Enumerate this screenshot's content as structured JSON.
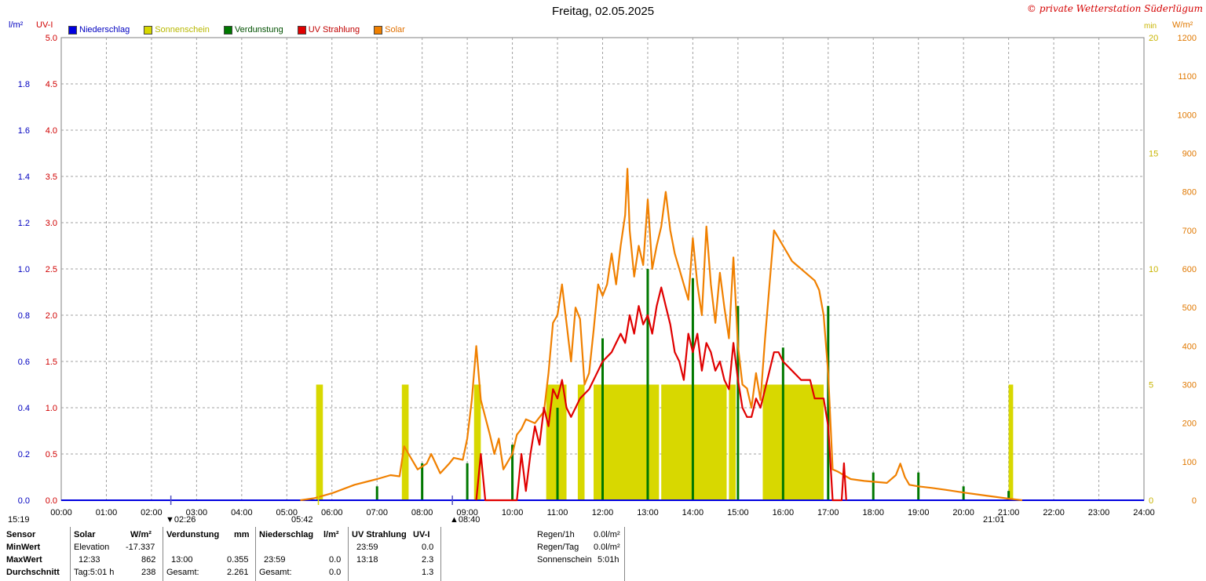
{
  "header": {
    "title": "Freitag, 02.05.2025",
    "copyright": "© private Wetterstation Süderlügum"
  },
  "axes": {
    "left1_unit": "l/m²",
    "left2_unit": "UV-I",
    "right1_unit": "min",
    "right2_unit": "W/m²"
  },
  "legend": [
    {
      "label": "Niederschlag",
      "color": "#0000e0"
    },
    {
      "label": "Sonnenschein",
      "color": "#d8d800"
    },
    {
      "label": "Verdunstung",
      "color": "#007800"
    },
    {
      "label": "UV Strahlung",
      "color": "#e00000"
    },
    {
      "label": "Solar",
      "color": "#f08000"
    }
  ],
  "sun_markers": {
    "moonrise_left": "15:19",
    "moonset": "02:26",
    "sunrise": "05:42",
    "transit": "08:40",
    "sunset": "21:01"
  },
  "chart_data": {
    "type": "line",
    "title": "Freitag, 02.05.2025",
    "x_ticks": [
      "00:00",
      "01:00",
      "02:00",
      "03:00",
      "04:00",
      "05:00",
      "06:00",
      "07:00",
      "08:00",
      "09:00",
      "10:00",
      "11:00",
      "12:00",
      "13:00",
      "14:00",
      "15:00",
      "16:00",
      "17:00",
      "18:00",
      "19:00",
      "20:00",
      "21:00",
      "22:00",
      "23:00",
      "24:00"
    ],
    "xlim_hours": [
      0,
      24
    ],
    "axis_rain": {
      "unit": "l/m²",
      "ticks": [
        "0.0",
        "0.2",
        "0.4",
        "0.6",
        "0.8",
        "1.0",
        "1.2",
        "1.4",
        "1.6",
        "1.8"
      ],
      "max": 2.0
    },
    "axis_uv": {
      "unit": "UV-I",
      "ticks": [
        "0.0",
        "0.5",
        "1.0",
        "1.5",
        "2.0",
        "2.5",
        "3.0",
        "3.5",
        "4.0",
        "4.5",
        "5.0"
      ],
      "max": 5.0
    },
    "axis_sun": {
      "unit": "min",
      "ticks": [
        "0",
        "5",
        "10",
        "15",
        "20"
      ],
      "max": 20
    },
    "axis_solar": {
      "unit": "W/m²",
      "ticks": [
        "0",
        "100",
        "200",
        "300",
        "400",
        "500",
        "600",
        "700",
        "800",
        "900",
        "1000",
        "1100",
        "1200"
      ],
      "max": 1200
    },
    "series": [
      {
        "name": "Solar",
        "color": "#f08000",
        "axis": "solar",
        "points": [
          [
            5.3,
            0
          ],
          [
            5.6,
            5
          ],
          [
            6.0,
            18
          ],
          [
            6.5,
            40
          ],
          [
            7.0,
            55
          ],
          [
            7.3,
            65
          ],
          [
            7.5,
            62
          ],
          [
            7.6,
            140
          ],
          [
            7.7,
            120
          ],
          [
            7.9,
            80
          ],
          [
            8.1,
            95
          ],
          [
            8.2,
            120
          ],
          [
            8.4,
            70
          ],
          [
            8.6,
            95
          ],
          [
            8.7,
            110
          ],
          [
            8.9,
            105
          ],
          [
            9.0,
            160
          ],
          [
            9.1,
            260
          ],
          [
            9.2,
            400
          ],
          [
            9.3,
            260
          ],
          [
            9.5,
            170
          ],
          [
            9.6,
            120
          ],
          [
            9.7,
            160
          ],
          [
            9.8,
            80
          ],
          [
            9.9,
            100
          ],
          [
            10.0,
            120
          ],
          [
            10.1,
            170
          ],
          [
            10.2,
            185
          ],
          [
            10.3,
            210
          ],
          [
            10.5,
            200
          ],
          [
            10.7,
            230
          ],
          [
            10.8,
            330
          ],
          [
            10.9,
            460
          ],
          [
            11.0,
            480
          ],
          [
            11.1,
            560
          ],
          [
            11.2,
            460
          ],
          [
            11.3,
            360
          ],
          [
            11.4,
            500
          ],
          [
            11.5,
            470
          ],
          [
            11.6,
            300
          ],
          [
            11.7,
            330
          ],
          [
            11.8,
            440
          ],
          [
            11.9,
            560
          ],
          [
            12.0,
            530
          ],
          [
            12.1,
            560
          ],
          [
            12.2,
            640
          ],
          [
            12.3,
            560
          ],
          [
            12.4,
            660
          ],
          [
            12.5,
            740
          ],
          [
            12.55,
            860
          ],
          [
            12.6,
            700
          ],
          [
            12.7,
            580
          ],
          [
            12.8,
            660
          ],
          [
            12.9,
            610
          ],
          [
            13.0,
            780
          ],
          [
            13.1,
            600
          ],
          [
            13.2,
            660
          ],
          [
            13.3,
            710
          ],
          [
            13.4,
            800
          ],
          [
            13.5,
            700
          ],
          [
            13.6,
            640
          ],
          [
            13.7,
            600
          ],
          [
            13.8,
            560
          ],
          [
            13.9,
            520
          ],
          [
            14.0,
            680
          ],
          [
            14.1,
            560
          ],
          [
            14.2,
            480
          ],
          [
            14.3,
            710
          ],
          [
            14.4,
            560
          ],
          [
            14.5,
            460
          ],
          [
            14.6,
            590
          ],
          [
            14.7,
            500
          ],
          [
            14.8,
            420
          ],
          [
            14.9,
            630
          ],
          [
            15.0,
            400
          ],
          [
            15.1,
            300
          ],
          [
            15.2,
            290
          ],
          [
            15.3,
            240
          ],
          [
            15.4,
            330
          ],
          [
            15.5,
            260
          ],
          [
            15.6,
            420
          ],
          [
            15.7,
            560
          ],
          [
            15.8,
            700
          ],
          [
            15.9,
            680
          ],
          [
            16.0,
            660
          ],
          [
            16.1,
            640
          ],
          [
            16.2,
            620
          ],
          [
            16.3,
            610
          ],
          [
            16.5,
            590
          ],
          [
            16.7,
            570
          ],
          [
            16.8,
            545
          ],
          [
            16.9,
            480
          ],
          [
            17.0,
            330
          ],
          [
            17.1,
            80
          ],
          [
            17.2,
            75
          ],
          [
            17.5,
            55
          ],
          [
            17.8,
            50
          ],
          [
            18.0,
            48
          ],
          [
            18.3,
            45
          ],
          [
            18.5,
            65
          ],
          [
            18.6,
            95
          ],
          [
            18.7,
            60
          ],
          [
            18.8,
            40
          ],
          [
            19.0,
            36
          ],
          [
            19.3,
            32
          ],
          [
            19.6,
            27
          ],
          [
            20.0,
            20
          ],
          [
            20.5,
            12
          ],
          [
            21.0,
            4
          ],
          [
            21.3,
            0
          ]
        ]
      },
      {
        "name": "UV Strahlung",
        "color": "#e00000",
        "axis": "uv",
        "points": [
          [
            9.2,
            0.0
          ],
          [
            9.3,
            0.5
          ],
          [
            9.4,
            0.0
          ],
          [
            10.1,
            0.0
          ],
          [
            10.2,
            0.5
          ],
          [
            10.3,
            0.1
          ],
          [
            10.4,
            0.5
          ],
          [
            10.5,
            0.8
          ],
          [
            10.6,
            0.6
          ],
          [
            10.7,
            1.0
          ],
          [
            10.8,
            0.8
          ],
          [
            10.9,
            1.2
          ],
          [
            11.0,
            1.1
          ],
          [
            11.1,
            1.3
          ],
          [
            11.2,
            1.0
          ],
          [
            11.3,
            0.9
          ],
          [
            11.5,
            1.1
          ],
          [
            11.7,
            1.2
          ],
          [
            11.9,
            1.4
          ],
          [
            12.0,
            1.5
          ],
          [
            12.2,
            1.6
          ],
          [
            12.3,
            1.7
          ],
          [
            12.4,
            1.8
          ],
          [
            12.5,
            1.7
          ],
          [
            12.6,
            2.0
          ],
          [
            12.7,
            1.8
          ],
          [
            12.8,
            2.1
          ],
          [
            12.9,
            1.9
          ],
          [
            13.0,
            2.0
          ],
          [
            13.1,
            1.8
          ],
          [
            13.2,
            2.1
          ],
          [
            13.3,
            2.3
          ],
          [
            13.4,
            2.1
          ],
          [
            13.5,
            1.9
          ],
          [
            13.6,
            1.6
          ],
          [
            13.7,
            1.5
          ],
          [
            13.8,
            1.3
          ],
          [
            13.9,
            1.8
          ],
          [
            14.0,
            1.6
          ],
          [
            14.1,
            1.8
          ],
          [
            14.2,
            1.4
          ],
          [
            14.3,
            1.7
          ],
          [
            14.4,
            1.6
          ],
          [
            14.5,
            1.4
          ],
          [
            14.6,
            1.5
          ],
          [
            14.7,
            1.3
          ],
          [
            14.8,
            1.2
          ],
          [
            14.9,
            1.7
          ],
          [
            15.0,
            1.3
          ],
          [
            15.1,
            1.0
          ],
          [
            15.2,
            0.9
          ],
          [
            15.3,
            0.9
          ],
          [
            15.4,
            1.1
          ],
          [
            15.5,
            1.0
          ],
          [
            15.6,
            1.2
          ],
          [
            15.7,
            1.4
          ],
          [
            15.8,
            1.6
          ],
          [
            15.9,
            1.6
          ],
          [
            16.0,
            1.5
          ],
          [
            16.2,
            1.4
          ],
          [
            16.4,
            1.3
          ],
          [
            16.6,
            1.3
          ],
          [
            16.7,
            1.1
          ],
          [
            16.8,
            1.1
          ],
          [
            16.9,
            1.1
          ],
          [
            17.0,
            0.8
          ],
          [
            17.05,
            0.4
          ],
          [
            17.1,
            0.0
          ],
          [
            17.3,
            0.0
          ],
          [
            17.35,
            0.4
          ],
          [
            17.4,
            0.0
          ]
        ]
      }
    ],
    "sunshine_blocks_min": [
      [
        5.65,
        5.8,
        5
      ],
      [
        7.55,
        7.7,
        5
      ],
      [
        9.15,
        9.3,
        5
      ],
      [
        10.75,
        11.2,
        5
      ],
      [
        11.45,
        11.6,
        5
      ],
      [
        11.8,
        13.25,
        5
      ],
      [
        13.3,
        14.75,
        5
      ],
      [
        14.8,
        14.95,
        5
      ],
      [
        15.55,
        16.9,
        5
      ],
      [
        21.0,
        21.1,
        5
      ]
    ],
    "evaporation_bars": [
      [
        7.0,
        0.003
      ],
      [
        8.0,
        0.008
      ],
      [
        9.0,
        0.008
      ],
      [
        10.0,
        0.012
      ],
      [
        11.0,
        0.02
      ],
      [
        12.0,
        0.035
      ],
      [
        13.0,
        0.05
      ],
      [
        14.0,
        0.048
      ],
      [
        15.0,
        0.042
      ],
      [
        16.0,
        0.033
      ],
      [
        17.0,
        0.042
      ],
      [
        18.0,
        0.006
      ],
      [
        19.0,
        0.006
      ],
      [
        20.0,
        0.003
      ],
      [
        21.0,
        0.002
      ]
    ]
  },
  "table": {
    "sensor": {
      "header": "Sensor",
      "rows": [
        "MinWert",
        "MaxWert",
        "Durchschnitt"
      ]
    },
    "solar": {
      "header": "Solar",
      "unit": "W/m²",
      "min_label": "Elevation",
      "min_value": "-17.337",
      "max_time": "12:33",
      "max_value": "862",
      "avg_label": "Tag:5:01 h",
      "avg_value": "238"
    },
    "verdunstung": {
      "header": "Verdunstung",
      "unit": "mm",
      "max_time": "13:00",
      "max_value": "0.355",
      "avg_label": "Gesamt:",
      "avg_value": "2.261"
    },
    "niederschlag": {
      "header": "Niederschlag",
      "unit": "l/m²",
      "max_time": "23:59",
      "max_value": "0.0",
      "avg_label": "Gesamt:",
      "avg_value": "0.0"
    },
    "uv": {
      "header": "UV Strahlung",
      "unit": "UV-I",
      "min_time": "23:59",
      "min_value": "0.0",
      "max_time": "13:18",
      "max_value": "2.3",
      "avg_value": "1.3"
    },
    "summary": {
      "regen_h_label": "Regen/1h",
      "regen_h_value": "0.0l/m²",
      "regen_tag_label": "Regen/Tag",
      "regen_tag_value": "0.0l/m²",
      "sonne_label": "Sonnenschein",
      "sonne_value": "5:01h"
    }
  }
}
